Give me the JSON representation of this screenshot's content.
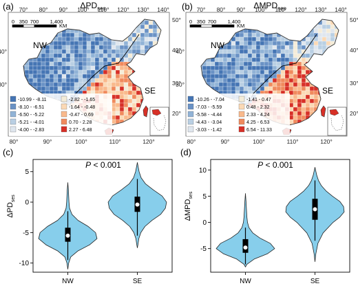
{
  "panels": {
    "a": {
      "tag": "(a)",
      "title": "ΔPD",
      "title_sub": "ses",
      "scalebar": {
        "ticks": [
          "0",
          "350",
          "700",
          "1,400"
        ],
        "unit": "KM"
      },
      "lon_labels_top": [
        "70°",
        "80°",
        "90°",
        "100°",
        "110°",
        "120°",
        "130°",
        "140°"
      ],
      "lon_labels_bottom": [
        "80°",
        "90°",
        "100°",
        "110°",
        "120°"
      ],
      "lat_labels": [
        "50°",
        "40°",
        "30°",
        "20°"
      ],
      "regions": [
        "NW",
        "SE"
      ],
      "legend": [
        {
          "label": "-10.99 - -8.11",
          "color": "#4575b4"
        },
        {
          "label": "-8.10 - -6.51",
          "color": "#6a92c5"
        },
        {
          "label": "-6.50 - -5.22",
          "color": "#91b3d6"
        },
        {
          "label": "-5.21 - -4.01",
          "color": "#b9cfe3"
        },
        {
          "label": "-4.00 - -2.83",
          "color": "#dfe6ee"
        },
        {
          "label": "-2.82 - -1.65",
          "color": "#f4ecd8"
        },
        {
          "label": "-1.64 - -0.48",
          "color": "#fbd9b5"
        },
        {
          "label": "-0.47 - 0.69",
          "color": "#f9b98c"
        },
        {
          "label": "0.70 - 2.28",
          "color": "#f08a5d"
        },
        {
          "label": "2.27 - 6.48",
          "color": "#d73027"
        }
      ]
    },
    "b": {
      "tag": "(b)",
      "title": "ΔMPD",
      "title_sub": "ses",
      "scalebar": {
        "ticks": [
          "0",
          "350",
          "700",
          "1,400"
        ],
        "unit": "KM"
      },
      "lon_labels_top": [
        "70°",
        "80°",
        "90°",
        "100°",
        "110°",
        "120°",
        "130°",
        "140°"
      ],
      "lon_labels_bottom": [
        "80°",
        "90°",
        "100°",
        "110°",
        "120°"
      ],
      "lat_labels": [
        "50°",
        "40°",
        "30°",
        "20°"
      ],
      "regions": [
        "NW",
        "SE"
      ],
      "legend": [
        {
          "label": "-10.26 - -7.04",
          "color": "#4575b4"
        },
        {
          "label": "-7.03 - -5.59",
          "color": "#6a92c5"
        },
        {
          "label": "-5.58 - -4.44",
          "color": "#91b3d6"
        },
        {
          "label": "-4.43 - -3.04",
          "color": "#b9cfe3"
        },
        {
          "label": "-3.03 - -1.42",
          "color": "#dfe6ee"
        },
        {
          "label": "-1.41 - 0.47",
          "color": "#f4ecd8"
        },
        {
          "label": "0.48 - 2.32",
          "color": "#fbd9b5"
        },
        {
          "label": "2.33 - 4.24",
          "color": "#f9b98c"
        },
        {
          "label": "4.25 - 6.53",
          "color": "#f08a5d"
        },
        {
          "label": "6.54 - 11.33",
          "color": "#d73027"
        }
      ]
    }
  },
  "colors": {
    "violin_fill": "#87ceeb",
    "violin_stroke": "#222222",
    "box_fill": "#000000",
    "median_fill": "#ffffff",
    "nw_map_color": "#5b84bd",
    "se_map_color": "#e4572e"
  },
  "chart_data": [
    {
      "panel": "(c)",
      "type": "violin",
      "title": "",
      "annotation_italic": "P",
      "annotation_rest": " < 0.001",
      "ylabel": "ΔPD",
      "ylabel_sub": "ses",
      "ylim": [
        -11.5,
        7
      ],
      "yticks": [
        -10,
        -5,
        0,
        5
      ],
      "categories": [
        "NW",
        "SE"
      ],
      "violins": [
        {
          "name": "NW",
          "min": -11,
          "max": 3.2,
          "q1": -6.5,
          "median": -5.5,
          "q3": -4.2,
          "whisker_low": -9.5,
          "whisker_high": -1.5,
          "profile": [
            [
              -11,
              0
            ],
            [
              -10,
              0.03
            ],
            [
              -9,
              0.1
            ],
            [
              -8,
              0.35
            ],
            [
              -7,
              0.75
            ],
            [
              -6,
              1.0
            ],
            [
              -5,
              0.95
            ],
            [
              -4,
              0.7
            ],
            [
              -3,
              0.35
            ],
            [
              -2,
              0.14
            ],
            [
              -1,
              0.06
            ],
            [
              0,
              0.04
            ],
            [
              1,
              0.03
            ],
            [
              2,
              0.02
            ],
            [
              3.2,
              0
            ]
          ]
        },
        {
          "name": "SE",
          "min": -7.5,
          "max": 6.5,
          "q1": -1.6,
          "median": -0.4,
          "q3": 0.9,
          "whisker_low": -5.5,
          "whisker_high": 3.8,
          "profile": [
            [
              -7.5,
              0
            ],
            [
              -7,
              0.02
            ],
            [
              -6,
              0.05
            ],
            [
              -5,
              0.12
            ],
            [
              -4,
              0.26
            ],
            [
              -3,
              0.5
            ],
            [
              -2,
              0.8
            ],
            [
              -1,
              0.96
            ],
            [
              0,
              1.0
            ],
            [
              1,
              0.85
            ],
            [
              2,
              0.55
            ],
            [
              3,
              0.28
            ],
            [
              4,
              0.13
            ],
            [
              5,
              0.06
            ],
            [
              6.5,
              0
            ]
          ]
        }
      ]
    },
    {
      "panel": "(d)",
      "type": "violin",
      "title": "",
      "annotation_italic": "P",
      "annotation_rest": " < 0.001",
      "ylabel": "ΔMPD",
      "ylabel_sub": "ses",
      "ylim": [
        -9.5,
        12
      ],
      "yticks": [
        -5,
        0,
        5,
        10
      ],
      "categories": [
        "NW",
        "SE"
      ],
      "violins": [
        {
          "name": "NW",
          "min": -8.5,
          "max": 5.5,
          "q1": -5.8,
          "median": -4.8,
          "q3": -3.2,
          "whisker_low": -8.0,
          "whisker_high": -1.0,
          "profile": [
            [
              -8.5,
              0
            ],
            [
              -8,
              0.05
            ],
            [
              -7,
              0.3
            ],
            [
              -6,
              0.75
            ],
            [
              -5,
              1.0
            ],
            [
              -4,
              0.85
            ],
            [
              -3,
              0.5
            ],
            [
              -2,
              0.25
            ],
            [
              -1,
              0.12
            ],
            [
              0,
              0.07
            ],
            [
              1,
              0.05
            ],
            [
              2,
              0.04
            ],
            [
              3,
              0.03
            ],
            [
              4,
              0.02
            ],
            [
              5.5,
              0
            ]
          ]
        },
        {
          "name": "SE",
          "min": -7.5,
          "max": 10.5,
          "q1": 0.5,
          "median": 2.5,
          "q3": 4.5,
          "whisker_low": -3.5,
          "whisker_high": 8.0,
          "profile": [
            [
              -7.5,
              0
            ],
            [
              -6,
              0.03
            ],
            [
              -4,
              0.1
            ],
            [
              -2,
              0.28
            ],
            [
              0,
              0.62
            ],
            [
              1,
              0.85
            ],
            [
              2,
              1.0
            ],
            [
              3,
              0.98
            ],
            [
              4,
              0.85
            ],
            [
              5,
              0.6
            ],
            [
              6,
              0.38
            ],
            [
              7,
              0.22
            ],
            [
              8,
              0.12
            ],
            [
              9,
              0.06
            ],
            [
              10.5,
              0
            ]
          ]
        }
      ]
    }
  ]
}
